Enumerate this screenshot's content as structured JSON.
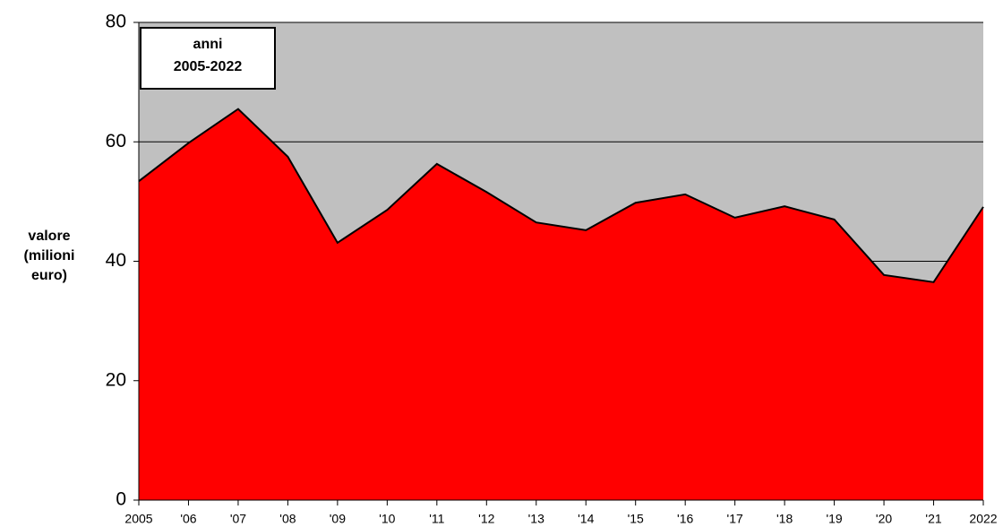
{
  "chart_data": {
    "type": "area",
    "annotation": [
      "anni",
      "2005-2022"
    ],
    "ylabel": [
      "valore",
      "(milioni",
      "euro)"
    ],
    "categories": [
      "2005",
      "'06",
      "'07",
      "'08",
      "'09",
      "'10",
      "'11",
      "'12",
      "'13",
      "'14",
      "'15",
      "'16",
      "'17",
      "'18",
      "'19",
      "'20",
      "'21",
      "2022"
    ],
    "series": [
      {
        "color": "#ff0000",
        "values": [
          53.4,
          59.8,
          65.5,
          57.5,
          43.1,
          48.6,
          56.3,
          51.6,
          46.5,
          45.2,
          49.8,
          51.2,
          47.3,
          49.2,
          47.0,
          37.7,
          36.5,
          49.1
        ]
      }
    ],
    "ylim": [
      0,
      80
    ],
    "yticks": [
      0,
      20,
      40,
      60,
      80
    ],
    "grid": true,
    "plot_background": "#c0c0c0"
  }
}
